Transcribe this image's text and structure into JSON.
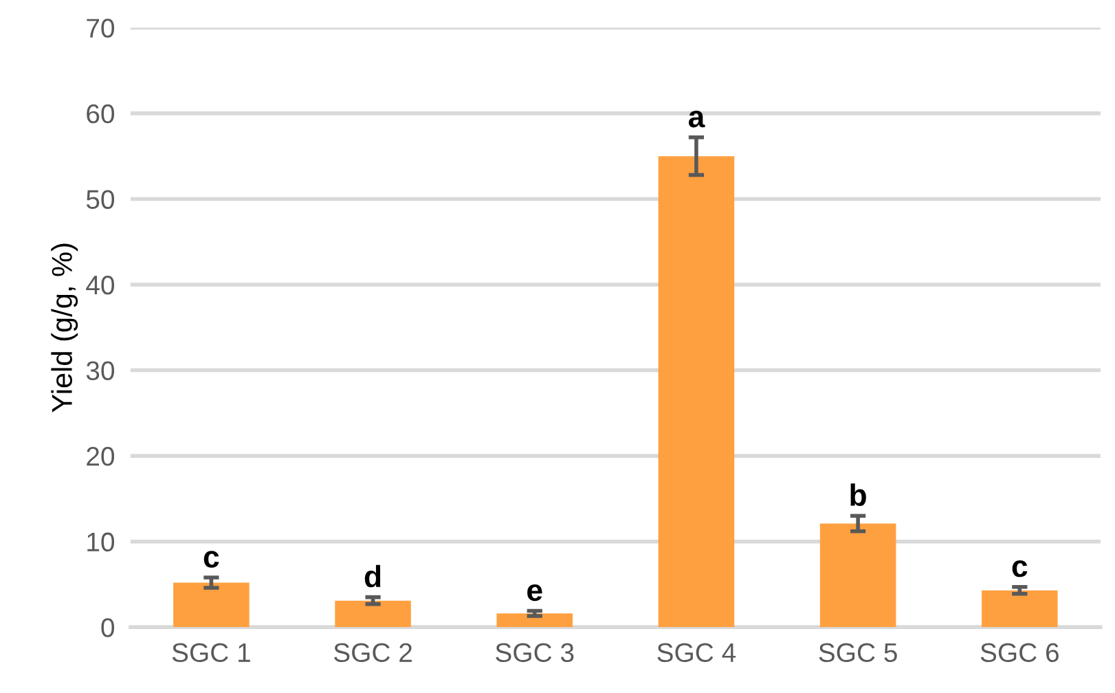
{
  "chart_data": {
    "type": "bar",
    "ylabel": "Yield (g/g, %)",
    "categories": [
      "SGC 1",
      "SGC 2",
      "SGC 3",
      "SGC 4",
      "SGC 5",
      "SGC 6"
    ],
    "values": [
      5.2,
      3.1,
      1.6,
      55.0,
      12.1,
      4.3
    ],
    "errors": [
      0.6,
      0.4,
      0.3,
      2.2,
      0.9,
      0.4
    ],
    "color": "#ffa040",
    "ylim": [
      0,
      70
    ],
    "yticks": [
      0,
      10,
      20,
      30,
      40,
      50,
      60,
      70
    ],
    "grid": "y",
    "annotations": [
      {
        "text": "c",
        "x": "SGC 1",
        "y": 5.2
      },
      {
        "text": "d",
        "x": "SGC 2",
        "y": 3.1
      },
      {
        "text": "e",
        "x": "SGC 3",
        "y": 1.6
      },
      {
        "text": "a",
        "x": "SGC 4",
        "y": 55.0
      },
      {
        "text": "b",
        "x": "SGC 5",
        "y": 12.1
      },
      {
        "text": "c",
        "x": "SGC 6",
        "y": 4.3
      }
    ]
  }
}
